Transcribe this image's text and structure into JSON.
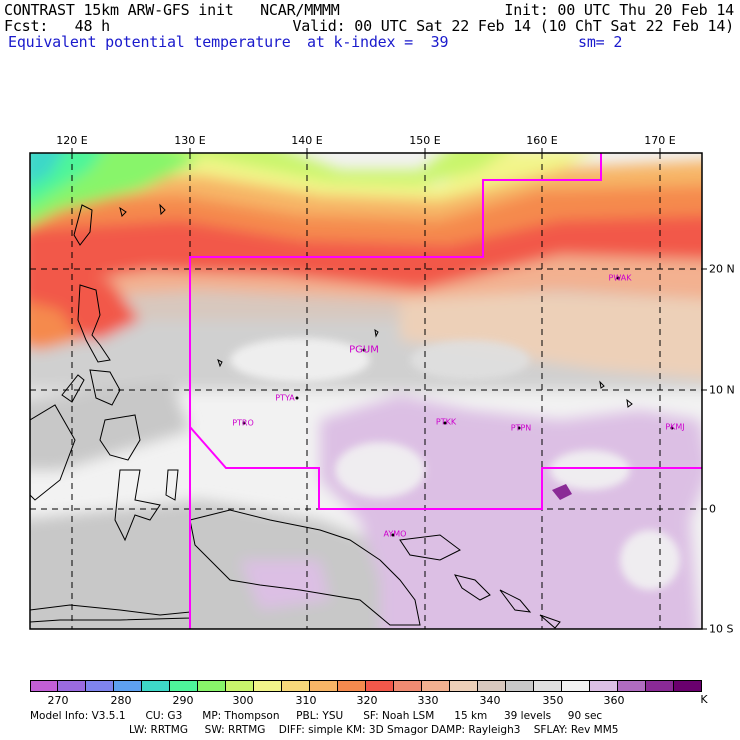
{
  "header": {
    "line1_left": "CONTRAST 15km ARW-GFS init   NCAR/MMMM",
    "line1_right": "Init: 00 UTC Thu 20 Feb 14",
    "line2_left": "Fcst:   48 h",
    "line2_right": "Valid: 00 UTC Sat 22 Feb 14 (10 ChT Sat 22 Feb 14)",
    "line3_left": "Equivalent potential temperature",
    "line3_mid": "at k-index =  39",
    "line3_right": "sm= 2"
  },
  "map": {
    "lon_labels": [
      "120 E",
      "130 E",
      "140 E",
      "150 E",
      "160 E",
      "170 E"
    ],
    "lat_labels": [
      "20 N",
      "10 N",
      "0",
      "10 S"
    ],
    "stations": [
      {
        "id": "PGUM",
        "big": true
      },
      {
        "id": "PTYA",
        "big": false
      },
      {
        "id": "PTRO",
        "big": false
      },
      {
        "id": "PTKK",
        "big": false
      },
      {
        "id": "PTPN",
        "big": false
      },
      {
        "id": "PKMJ",
        "big": false
      },
      {
        "id": "PWAK",
        "big": false
      },
      {
        "id": "AYMO",
        "big": false
      }
    ],
    "colors": {
      "domain_outline": "#ff00ff",
      "grid": "#000000",
      "coast": "#000000"
    }
  },
  "colorbar": {
    "ticks": [
      "270",
      "280",
      "290",
      "300",
      "310",
      "320",
      "330",
      "340",
      "350",
      "360"
    ],
    "unit": "K",
    "colors": [
      "#c25fd6",
      "#9b6be0",
      "#7f84ee",
      "#5ea0f0",
      "#3ed8c8",
      "#4ef59a",
      "#88f56a",
      "#c9f56c",
      "#f2f58a",
      "#f7d87a",
      "#f7b566",
      "#f58a4e",
      "#f2584a",
      "#f08b72",
      "#f3b190",
      "#edd0b8",
      "#d8c8be",
      "#c8c8c8",
      "#e0e0e0",
      "#f2f2f2",
      "#dcbfe4",
      "#b06cc0",
      "#8a2a96",
      "#6a006e"
    ]
  },
  "footer": {
    "line1": "Model Info: V3.5.1      CU: G3      MP: Thompson     PBL: YSU      SF: Noah LSM      15 km     39 levels     90 sec",
    "line2": "LW: RRTMG     SW: RRTMG    DIFF: simple KM: 3D Smagor DAMP: Rayleigh3    SFLAY: Rev MM5"
  }
}
